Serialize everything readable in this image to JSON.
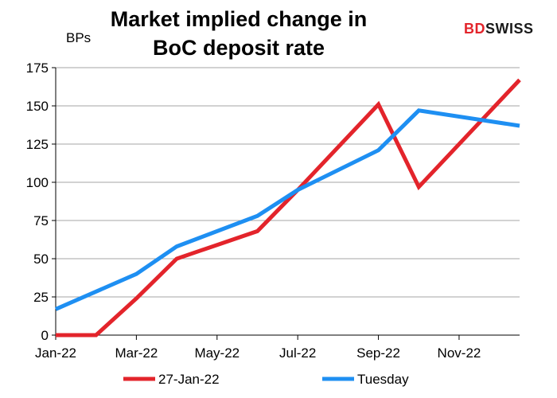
{
  "logo": {
    "part1": "BD",
    "part2": "SWISS"
  },
  "chart_data": {
    "type": "line",
    "title": "Market implied change in BoC deposit rate",
    "title_lines": [
      "Market implied change in",
      "BoC deposit rate"
    ],
    "ylabel": "BPs",
    "xlabel": "",
    "ylim": [
      0,
      175
    ],
    "yticks": [
      "0",
      "25",
      "50",
      "75",
      "100",
      "125",
      "150",
      "175"
    ],
    "xlim": [
      0,
      11.5
    ],
    "xticks": [
      {
        "x": 0,
        "label": "Jan-22"
      },
      {
        "x": 2,
        "label": "Mar-22"
      },
      {
        "x": 4,
        "label": "May-22"
      },
      {
        "x": 6,
        "label": "Jul-22"
      },
      {
        "x": 8,
        "label": "Sep-22"
      },
      {
        "x": 10,
        "label": "Nov-22"
      }
    ],
    "grid": true,
    "legend_position": "bottom",
    "series": [
      {
        "name": "27-Jan-22",
        "color": "#e3242b",
        "points": [
          [
            0,
            0
          ],
          [
            1,
            0
          ],
          [
            2,
            24
          ],
          [
            3,
            50
          ],
          [
            4,
            59
          ],
          [
            5,
            68
          ],
          [
            6,
            95
          ],
          [
            8,
            151
          ],
          [
            9,
            97
          ],
          [
            11.5,
            167
          ]
        ]
      },
      {
        "name": "Tuesday",
        "color": "#1e8ff2",
        "points": [
          [
            0,
            17
          ],
          [
            2,
            40
          ],
          [
            3,
            58
          ],
          [
            5,
            78
          ],
          [
            6,
            95
          ],
          [
            8,
            121
          ],
          [
            9,
            147
          ],
          [
            11.5,
            137
          ]
        ]
      }
    ]
  }
}
